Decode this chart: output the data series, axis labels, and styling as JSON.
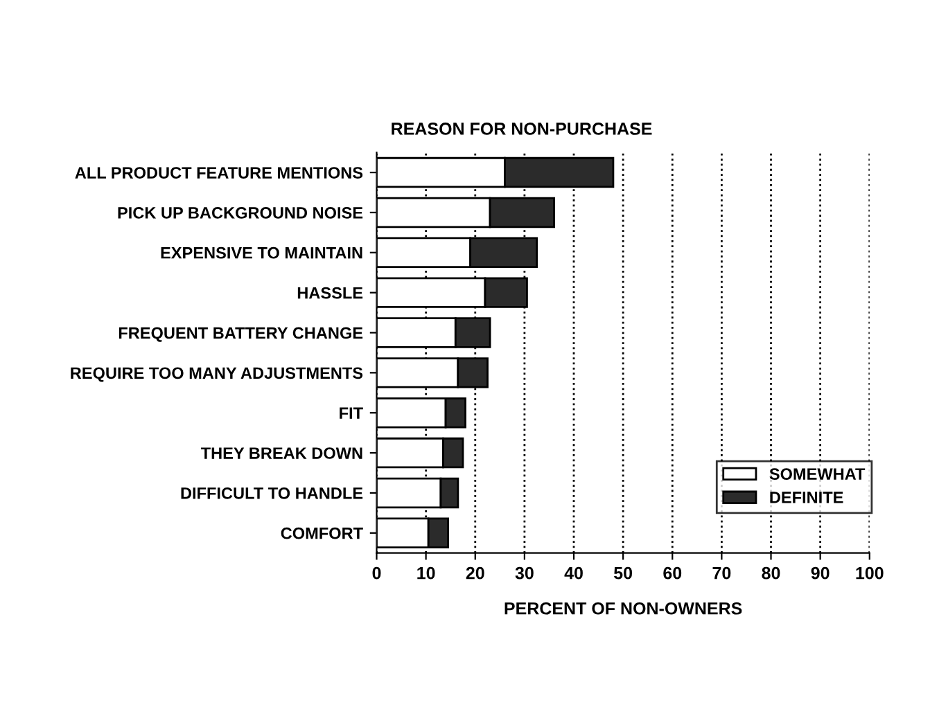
{
  "chart_data": {
    "type": "bar",
    "orientation": "horizontal",
    "stacked": true,
    "ylabel": "REASON FOR NON-PURCHASE",
    "xlabel": "PERCENT OF NON-OWNERS",
    "categories": [
      "ALL PRODUCT FEATURE MENTIONS",
      "PICK UP BACKGROUND NOISE",
      "EXPENSIVE TO MAINTAIN",
      "HASSLE",
      "FREQUENT BATTERY CHANGE",
      "REQUIRE TOO MANY ADJUSTMENTS",
      "FIT",
      "THEY BREAK DOWN",
      "DIFFICULT TO HANDLE",
      "COMFORT"
    ],
    "series": [
      {
        "name": "SOMEWHAT",
        "color": "#ffffff",
        "values": [
          26,
          23,
          19,
          22,
          16,
          16.5,
          14,
          13.5,
          13,
          10.5
        ]
      },
      {
        "name": "DEFINITE",
        "color": "#2b2b2b",
        "values": [
          22,
          13,
          13.5,
          8.5,
          7,
          6,
          4,
          4,
          3.5,
          4
        ]
      }
    ],
    "xlim": [
      0,
      100
    ],
    "xticks": [
      0,
      10,
      20,
      30,
      40,
      50,
      60,
      70,
      80,
      90,
      100
    ],
    "grid": "x",
    "legend": "bottom right"
  }
}
